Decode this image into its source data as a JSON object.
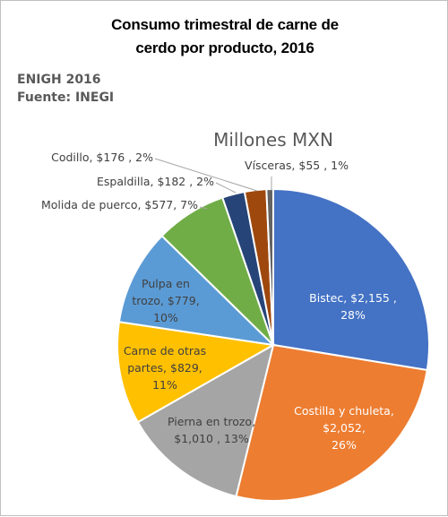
{
  "header": {
    "title_line1": "Consumo trimestral de carne de",
    "title_line2": "cerdo por producto, 2016",
    "source_line1": "ENIGH 2016",
    "source_line2": "Fuente: INEGI"
  },
  "chart_data": {
    "type": "pie",
    "title": "Millones MXN",
    "start_angle_deg": 0,
    "direction": "clockwise",
    "slices": [
      {
        "name": "Bistec",
        "value": 2155,
        "value_label": "$2,155",
        "percent_label": "28%",
        "color": "#4472c4",
        "label_lines": [
          "Bistec,  $2,155 ,",
          "28%"
        ],
        "label_color": "#ffffff",
        "label_inside": true
      },
      {
        "name": "Costilla y chuleta",
        "value": 2052,
        "value_label": "$2,052",
        "percent_label": "26%",
        "color": "#ed7d31",
        "label_lines": [
          "Costilla y chuleta,",
          "$2,052,",
          "26%"
        ],
        "label_color": "#ffffff",
        "label_inside": true
      },
      {
        "name": "Pierna en trozo",
        "value": 1010,
        "value_label": "$1,010",
        "percent_label": "13%",
        "color": "#a5a5a5",
        "label_lines": [
          "Pierna en trozo,",
          "$1,010 , 13%"
        ],
        "label_color": "#404040",
        "label_inside": true
      },
      {
        "name": "Carne de otras partes",
        "value": 829,
        "value_label": "$829",
        "percent_label": "11%",
        "color": "#ffc000",
        "label_lines": [
          "Carne de otras",
          "partes, $829,",
          "11%"
        ],
        "label_color": "#404040",
        "label_inside": true
      },
      {
        "name": "Pulpa en trozo",
        "value": 779,
        "value_label": "$779",
        "percent_label": "10%",
        "color": "#5b9bd5",
        "label_lines": [
          "Pulpa en",
          "trozo, $779,",
          "10%"
        ],
        "label_color": "#404040",
        "label_inside": true
      },
      {
        "name": "Molida de puerco",
        "value": 577,
        "value_label": "$577",
        "percent_label": "7%",
        "color": "#70ad47",
        "label_lines": [
          "Molida de puerco, $577,  7%"
        ],
        "label_color": "#404040",
        "label_inside": false
      },
      {
        "name": "Espaldilla",
        "value": 182,
        "value_label": "$182",
        "percent_label": "2%",
        "color": "#264478",
        "label_lines": [
          "Espaldilla, $182 , 2%"
        ],
        "label_color": "#404040",
        "label_inside": false
      },
      {
        "name": "Codillo",
        "value": 176,
        "value_label": "$176",
        "percent_label": "2%",
        "color": "#9e480e",
        "label_lines": [
          "Codillo, $176 , 2%"
        ],
        "label_color": "#404040",
        "label_inside": false
      },
      {
        "name": "Vísceras",
        "value": 55,
        "value_label": "$55",
        "percent_label": "1%",
        "color": "#636363",
        "label_lines": [
          "Vísceras, $55 , 1%"
        ],
        "label_color": "#404040",
        "label_inside": false
      }
    ],
    "leader_line_color": "#a6a6a6"
  }
}
